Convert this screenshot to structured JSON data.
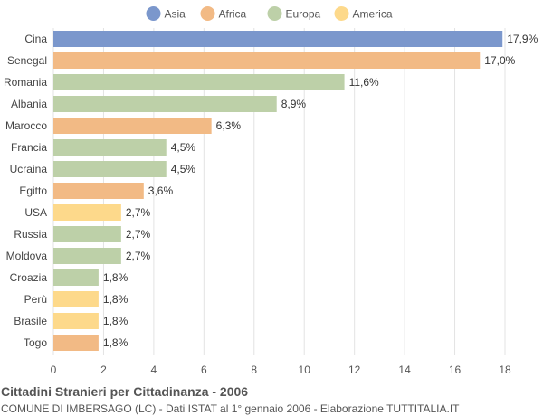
{
  "chart_data": {
    "type": "bar",
    "orientation": "horizontal",
    "title": "Cittadini Stranieri per Cittadinanza - 2006",
    "subtitle": "COMUNE DI IMBERSAGO (LC) - Dati ISTAT al 1° gennaio 2006 - Elaborazione TUTTITALIA.IT",
    "xlim": [
      0,
      18
    ],
    "xticks": [
      0,
      2,
      4,
      6,
      8,
      10,
      12,
      14,
      16,
      18
    ],
    "grid": true,
    "legend_position": "top",
    "legend": [
      {
        "name": "Asia",
        "color": "#7b97cc"
      },
      {
        "name": "Africa",
        "color": "#f2ba85"
      },
      {
        "name": "Europa",
        "color": "#bdd0a8"
      },
      {
        "name": "America",
        "color": "#fdd98b"
      }
    ],
    "categories": [
      "Cina",
      "Senegal",
      "Romania",
      "Albania",
      "Marocco",
      "Francia",
      "Ucraina",
      "Egitto",
      "USA",
      "Russia",
      "Moldova",
      "Croazia",
      "Perù",
      "Brasile",
      "Togo"
    ],
    "values": [
      17.9,
      17.0,
      11.6,
      8.9,
      6.3,
      4.5,
      4.5,
      3.6,
      2.7,
      2.7,
      2.7,
      1.8,
      1.8,
      1.8,
      1.8
    ],
    "value_labels": [
      "17,9%",
      "17,0%",
      "11,6%",
      "8,9%",
      "6,3%",
      "4,5%",
      "4,5%",
      "3,6%",
      "2,7%",
      "2,7%",
      "2,7%",
      "1,8%",
      "1,8%",
      "1,8%",
      "1,8%"
    ],
    "groups": [
      "Asia",
      "Africa",
      "Europa",
      "Europa",
      "Africa",
      "Europa",
      "Europa",
      "Africa",
      "America",
      "Europa",
      "Europa",
      "Europa",
      "America",
      "America",
      "Africa"
    ]
  }
}
